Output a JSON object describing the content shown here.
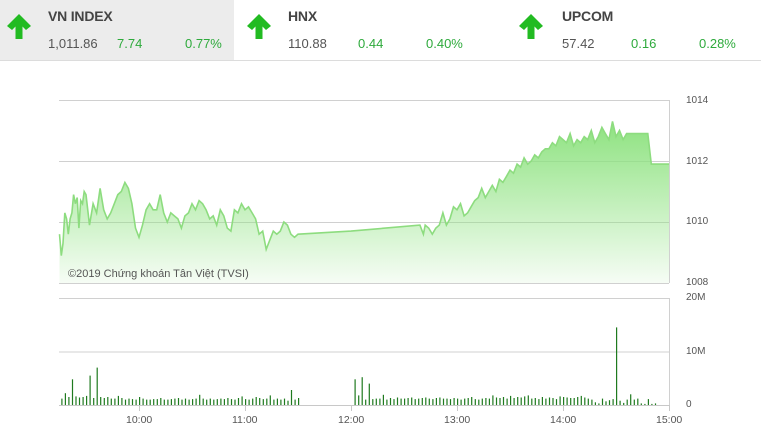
{
  "tickers": [
    {
      "name": "VN INDEX",
      "value": "1,011.86",
      "change": "7.74",
      "percent": "0.77%",
      "direction": "up",
      "icon": "arrow-up-icon"
    },
    {
      "name": "HNX",
      "value": "110.88",
      "change": "0.44",
      "percent": "0.40%",
      "direction": "up",
      "icon": "arrow-up-icon"
    },
    {
      "name": "UPCOM",
      "value": "57.42",
      "change": "0.16",
      "percent": "0.28%",
      "direction": "up",
      "icon": "arrow-up-icon"
    }
  ],
  "colors": {
    "up": "#22bb22",
    "up_text": "#2eaa3c",
    "line": "#8ddc7f",
    "fill_top": "#8de27f",
    "volume_bar": "#1f7a1f",
    "grid": "#d0d0d0"
  },
  "copyright": "©2019 Chứng khoán Tân Việt (TVSI)",
  "chart_data": [
    {
      "type": "area",
      "title": "VN INDEX intraday",
      "xlabel": "",
      "ylabel": "",
      "ylim": [
        1008,
        1014
      ],
      "yticks": [
        "1014",
        "1012",
        "1010",
        "1008"
      ],
      "xticks": [
        "10:00",
        "11:00",
        "12:00",
        "13:00",
        "14:00",
        "15:00"
      ],
      "grid": true,
      "x_minutes_from_0900": [
        15,
        16,
        17,
        18,
        19,
        20,
        21,
        22,
        23,
        24,
        25,
        26,
        27,
        28,
        29,
        30,
        32,
        34,
        36,
        38,
        40,
        42,
        44,
        46,
        48,
        50,
        52,
        54,
        56,
        58,
        60,
        62,
        64,
        66,
        68,
        70,
        72,
        74,
        76,
        78,
        80,
        82,
        84,
        86,
        88,
        90,
        92,
        94,
        96,
        98,
        100,
        102,
        104,
        106,
        108,
        110,
        112,
        114,
        116,
        118,
        120,
        122,
        124,
        126,
        128,
        130,
        132,
        134,
        136,
        138,
        140,
        142,
        144,
        146,
        148,
        150,
        180,
        219,
        221,
        222,
        224,
        226,
        228,
        230,
        232,
        234,
        236,
        238,
        240,
        242,
        244,
        246,
        248,
        250,
        252,
        254,
        256,
        258,
        260,
        262,
        264,
        266,
        268,
        270,
        272,
        274,
        276,
        278,
        280,
        282,
        284,
        286,
        288,
        290,
        292,
        294,
        296,
        298,
        300,
        302,
        304,
        306,
        308,
        310,
        312,
        314,
        316,
        318,
        320,
        322,
        324,
        326,
        328,
        330,
        332,
        334,
        336,
        338,
        340,
        342,
        344,
        346,
        348,
        350,
        352,
        354,
        356,
        358,
        360
      ],
      "values": [
        1009.6,
        1008.9,
        1009.3,
        1010.3,
        1010.1,
        1009.6,
        1010.1,
        1010.3,
        1010.9,
        1010.6,
        1010.8,
        1009.8,
        1010.7,
        1010.6,
        1011.0,
        1010.9,
        1009.9,
        1010.6,
        1010.3,
        1011.1,
        1010.4,
        1010.1,
        1010.3,
        1010.6,
        1010.9,
        1011.0,
        1011.3,
        1011.1,
        1010.6,
        1009.8,
        1009.5,
        1009.9,
        1010.4,
        1010.6,
        1010.4,
        1010.4,
        1010.9,
        1010.3,
        1010.0,
        1010.3,
        1010.2,
        1010.1,
        1009.8,
        1010.2,
        1010.3,
        1010.6,
        1010.4,
        1010.7,
        1010.6,
        1010.4,
        1010.1,
        1010.2,
        1009.9,
        1010.4,
        1010.2,
        1009.8,
        1009.7,
        1010.4,
        1010.3,
        1010.6,
        1010.4,
        1010.5,
        1010.3,
        1010.1,
        1009.6,
        1009.7,
        1009.1,
        1009.4,
        1009.7,
        1009.6,
        1009.7,
        1010.0,
        1009.9,
        1009.6,
        1009.5,
        1009.6,
        1009.7,
        1009.9,
        1009.6,
        1009.9,
        1009.8,
        1009.6,
        1009.8,
        1009.9,
        1010.3,
        1009.9,
        1010.1,
        1010.5,
        1010.4,
        1010.6,
        1010.2,
        1010.3,
        1010.5,
        1010.7,
        1010.8,
        1011.1,
        1010.8,
        1011.0,
        1011.2,
        1011.0,
        1011.4,
        1011.3,
        1011.5,
        1011.7,
        1011.6,
        1011.9,
        1011.8,
        1012.1,
        1011.9,
        1012.0,
        1012.2,
        1012.1,
        1012.3,
        1012.4,
        1012.4,
        1012.6,
        1012.5,
        1012.8,
        1012.7,
        1012.6,
        1012.9,
        1012.5,
        1012.7,
        1012.6,
        1012.8,
        1012.7,
        1013.0,
        1012.6,
        1012.8,
        1013.1,
        1012.9,
        1012.7,
        1013.3,
        1012.8,
        1013.0,
        1012.7,
        1012.9,
        1012.9,
        1012.9,
        1012.9,
        1012.9,
        1012.9,
        1012.9,
        1011.9,
        1011.9,
        1011.9,
        1011.9,
        1011.9,
        1011.9
      ]
    },
    {
      "type": "bar",
      "title": "Volume",
      "ylim": [
        0,
        20000000
      ],
      "yticks": [
        "20M",
        "10M",
        "0"
      ],
      "xticks": [
        "10:00",
        "11:00",
        "12:00",
        "13:00",
        "14:00",
        "15:00"
      ],
      "grid": true,
      "x_minutes_from_0900": [
        16,
        18,
        20,
        22,
        24,
        26,
        28,
        30,
        32,
        34,
        36,
        38,
        40,
        42,
        44,
        46,
        48,
        50,
        52,
        54,
        56,
        58,
        60,
        62,
        64,
        66,
        68,
        70,
        72,
        74,
        76,
        78,
        80,
        82,
        84,
        86,
        88,
        90,
        92,
        94,
        96,
        98,
        100,
        102,
        104,
        106,
        108,
        110,
        112,
        114,
        116,
        118,
        120,
        122,
        124,
        126,
        128,
        130,
        132,
        134,
        136,
        138,
        140,
        142,
        144,
        146,
        148,
        150,
        182,
        184,
        186,
        188,
        190,
        192,
        194,
        196,
        198,
        200,
        202,
        204,
        206,
        208,
        210,
        212,
        214,
        216,
        218,
        220,
        222,
        224,
        226,
        228,
        230,
        232,
        234,
        236,
        238,
        240,
        242,
        244,
        246,
        248,
        250,
        252,
        254,
        256,
        258,
        260,
        262,
        264,
        266,
        268,
        270,
        272,
        274,
        276,
        278,
        280,
        282,
        284,
        286,
        288,
        290,
        292,
        294,
        296,
        298,
        300,
        302,
        304,
        306,
        308,
        310,
        312,
        314,
        316,
        318,
        320,
        322,
        324,
        326,
        328,
        330,
        332,
        334,
        336,
        338,
        340,
        342,
        344,
        346,
        348,
        350,
        352,
        354,
        356,
        358,
        360
      ],
      "values": [
        1200000,
        2200000,
        1500000,
        4800000,
        1600000,
        1400000,
        1500000,
        1700000,
        5500000,
        1300000,
        7000000,
        1500000,
        1300000,
        1500000,
        1200000,
        1200000,
        1700000,
        1300000,
        1000000,
        1200000,
        1100000,
        1000000,
        1500000,
        1200000,
        1000000,
        1000000,
        1100000,
        1100000,
        1300000,
        1000000,
        1000000,
        1100000,
        1200000,
        1300000,
        1000000,
        1200000,
        1000000,
        1100000,
        1200000,
        1900000,
        1200000,
        1000000,
        1200000,
        1000000,
        1100000,
        1200000,
        1100000,
        1300000,
        1100000,
        1000000,
        1300000,
        1600000,
        1100000,
        1000000,
        1200000,
        1500000,
        1300000,
        1100000,
        1200000,
        1800000,
        1000000,
        1200000,
        1000000,
        1200000,
        800000,
        2800000,
        1000000,
        1300000,
        4800000,
        1800000,
        5200000,
        1000000,
        4000000,
        1100000,
        1200000,
        1200000,
        1900000,
        1000000,
        1300000,
        1100000,
        1400000,
        1200000,
        1200000,
        1300000,
        1400000,
        1100000,
        1200000,
        1300000,
        1400000,
        1200000,
        1100000,
        1300000,
        1400000,
        1200000,
        1200000,
        1100000,
        1300000,
        1200000,
        1000000,
        1200000,
        1300000,
        1500000,
        1100000,
        1000000,
        1200000,
        1300000,
        1200000,
        1800000,
        1400000,
        1300000,
        1500000,
        1200000,
        1700000,
        1300000,
        1500000,
        1400000,
        1600000,
        1800000,
        1200000,
        1300000,
        1100000,
        1500000,
        1200000,
        1400000,
        1300000,
        1100000,
        1600000,
        1500000,
        1400000,
        1300000,
        1300000,
        1500000,
        1700000,
        1400000,
        1200000,
        1000000,
        500000,
        300000,
        1200000,
        700000,
        900000,
        1100000,
        14500000,
        800000,
        400000,
        1000000,
        2000000,
        1000000,
        1200000,
        300000,
        200000,
        1100000,
        200000,
        300000
      ]
    }
  ]
}
